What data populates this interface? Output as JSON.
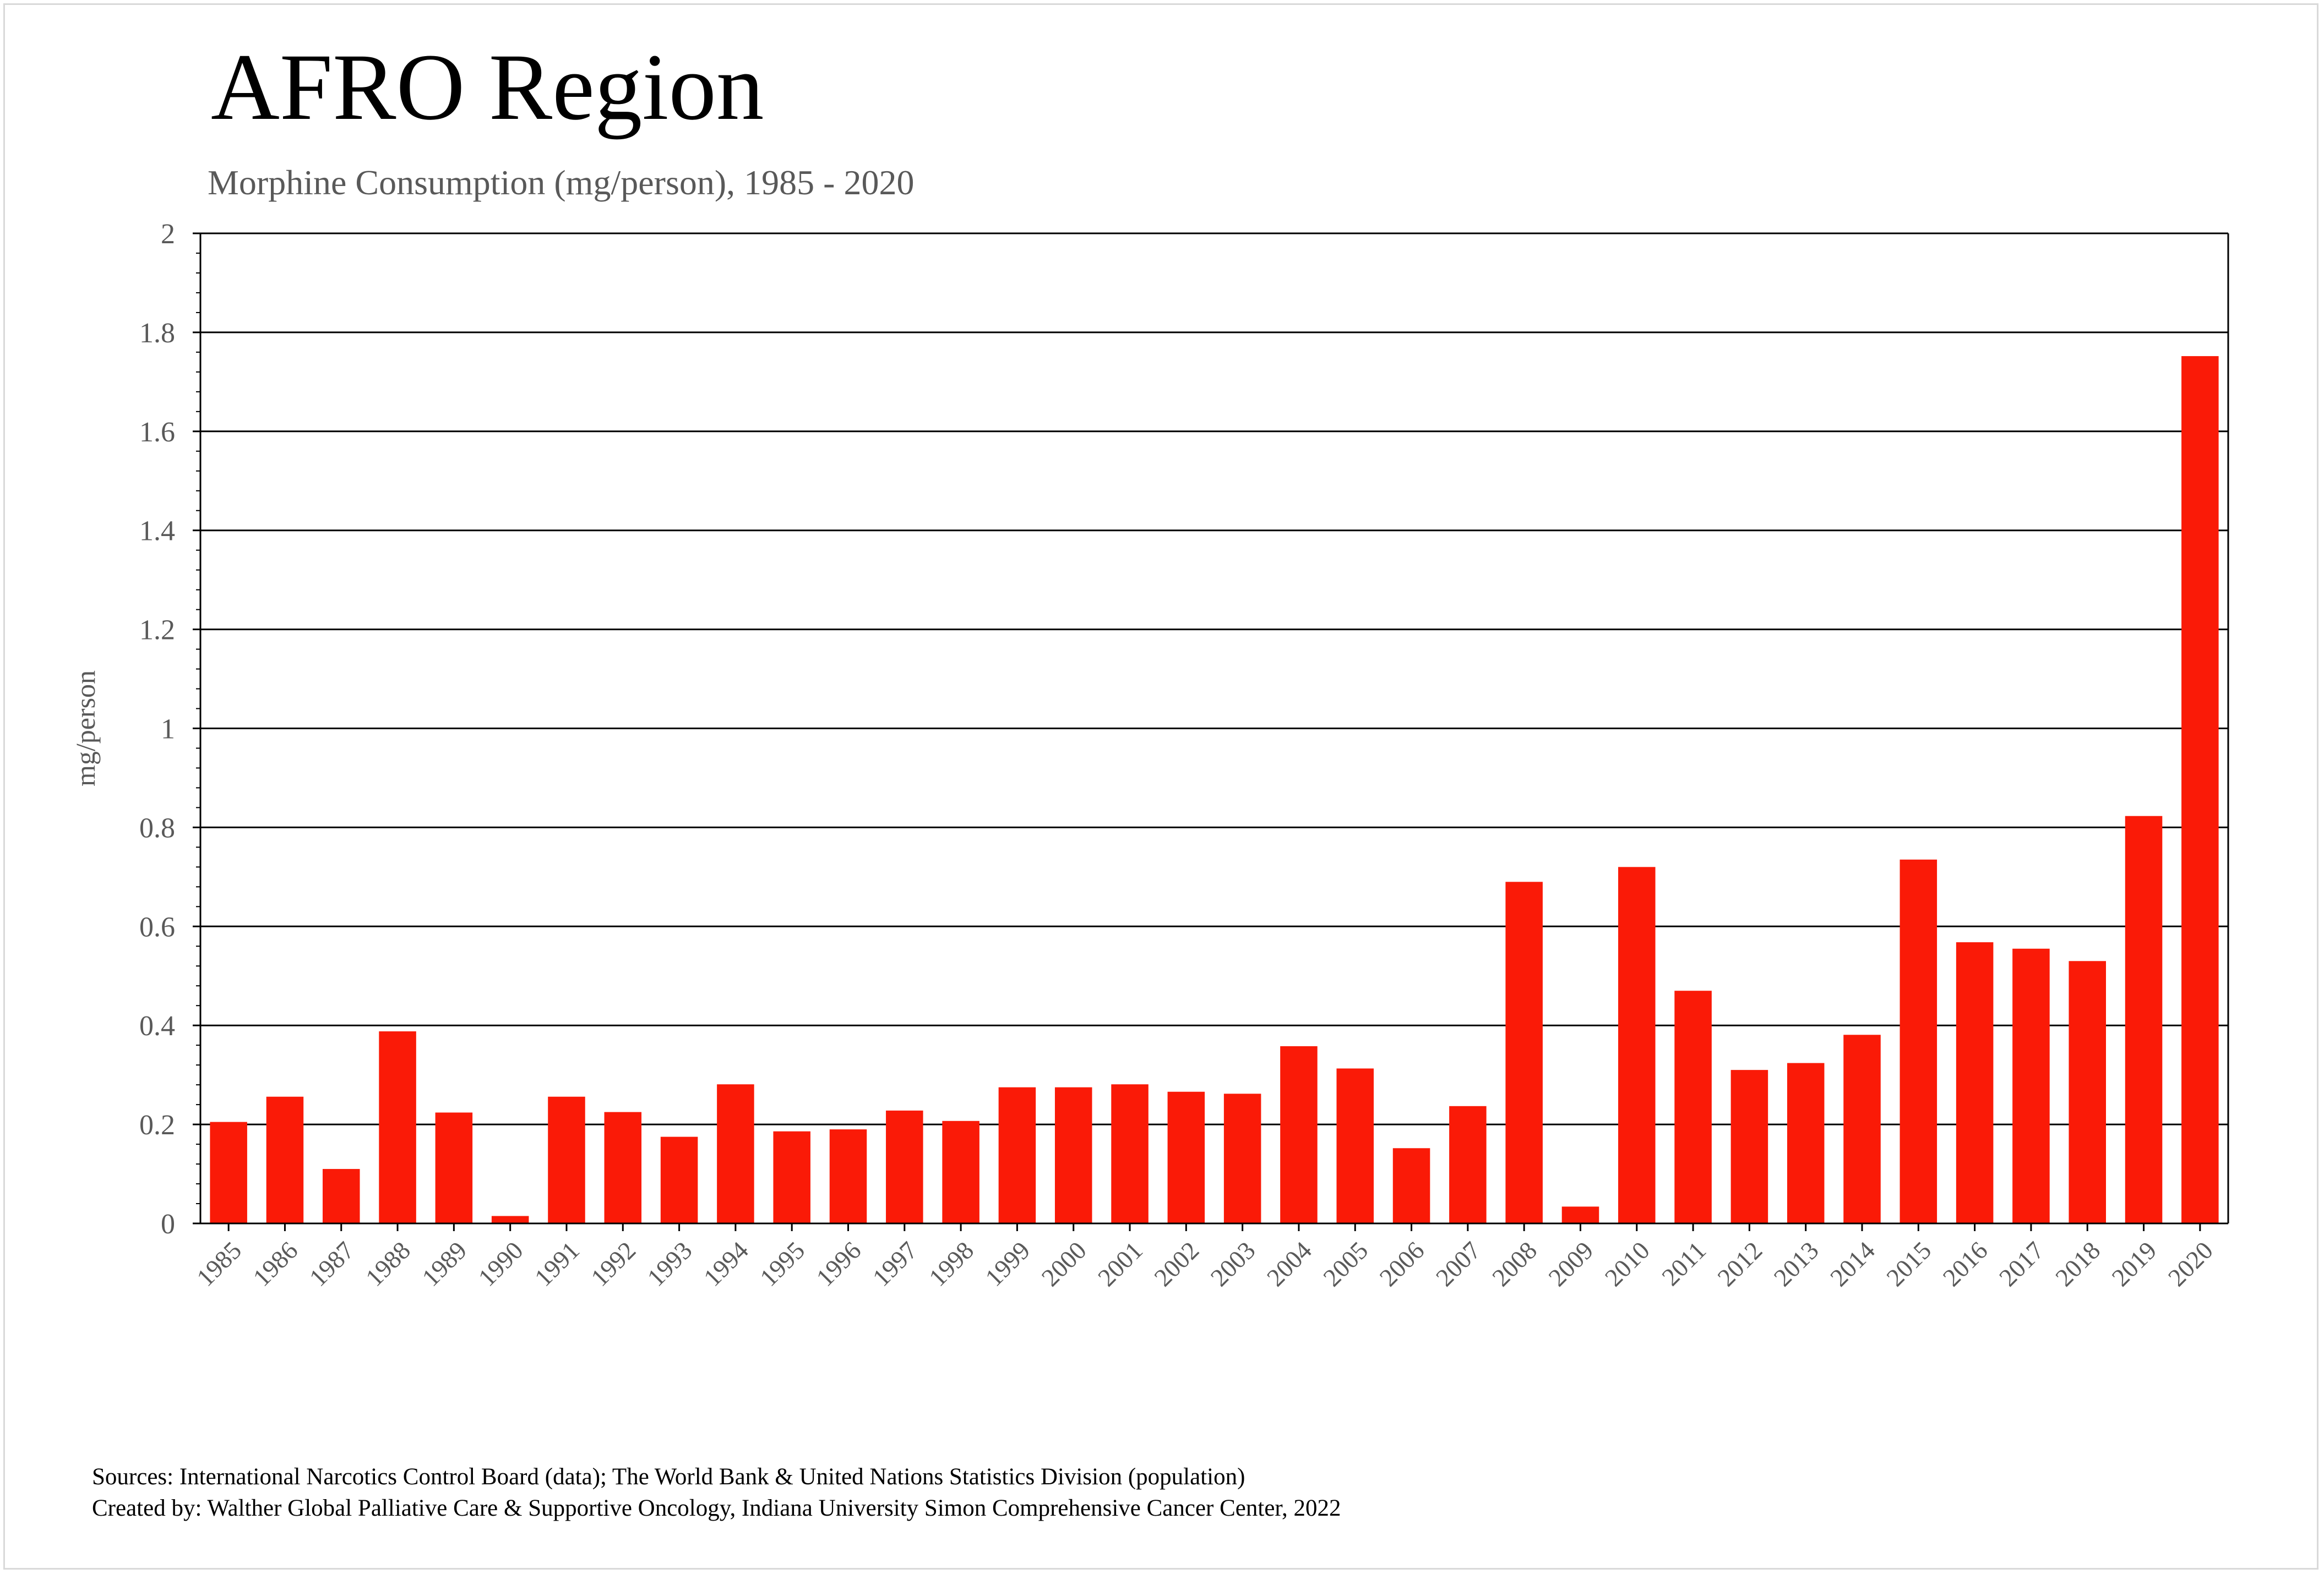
{
  "title": "AFRO Region",
  "subtitle": "Morphine Consumption (mg/person), 1985 - 2020",
  "footer": {
    "sources": "Sources: International Narcotics Control Board (data); The World Bank & United Nations Statistics Division (population)",
    "created_by": "Created by: Walther  Global Palliative Care & Supportive Oncology, Indiana University Simon Comprehensive Cancer Center, 2022"
  },
  "colors": {
    "bar": "#fa1a07",
    "gridline": "#000000",
    "axis_text": "#595959"
  },
  "chart_data": {
    "type": "bar",
    "ylabel": "mg/person",
    "xlabel": "",
    "ylim": [
      0,
      2
    ],
    "yticks": [
      "0",
      "0.2",
      "0.4",
      "0.6",
      "0.8",
      "1",
      "1.2",
      "1.4",
      "1.6",
      "1.8",
      "2"
    ],
    "grid": true,
    "categories": [
      "1985",
      "1986",
      "1987",
      "1988",
      "1989",
      "1990",
      "1991",
      "1992",
      "1993",
      "1994",
      "1995",
      "1996",
      "1997",
      "1998",
      "1999",
      "2000",
      "2001",
      "2002",
      "2003",
      "2004",
      "2005",
      "2006",
      "2007",
      "2008",
      "2009",
      "2010",
      "2011",
      "2012",
      "2013",
      "2014",
      "2015",
      "2016",
      "2017",
      "2018",
      "2019",
      "2020"
    ],
    "values": [
      0.205,
      0.256,
      0.11,
      0.388,
      0.224,
      0.015,
      0.256,
      0.225,
      0.175,
      0.281,
      0.186,
      0.19,
      0.228,
      0.207,
      0.275,
      0.275,
      0.281,
      0.266,
      0.262,
      0.358,
      0.313,
      0.152,
      0.237,
      0.69,
      0.034,
      0.72,
      0.47,
      0.31,
      0.324,
      0.381,
      0.735,
      0.568,
      0.555,
      0.53,
      0.823,
      1.752
    ]
  }
}
